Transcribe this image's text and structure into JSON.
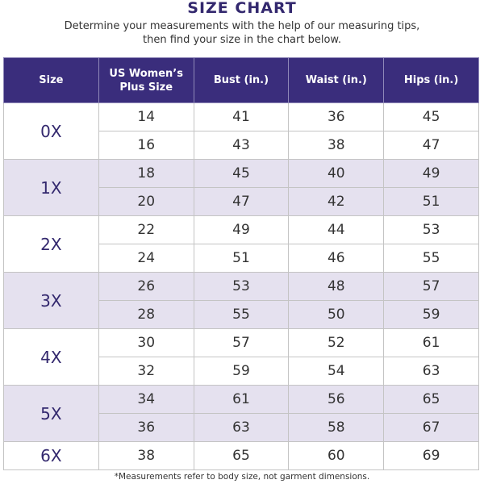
{
  "title": "SIZE CHART",
  "subtitle_lines": [
    "Determine your measurements with the help of our measuring tips,",
    "then find your size in the chart below."
  ],
  "colors": {
    "header": "#3a2d7c",
    "shade": "#e5e1ef",
    "size_text": "#33286e"
  },
  "headers": [
    "Size",
    "US Women’s Plus Size",
    "Bust (in.)",
    "Waist (in.)",
    "Hips (in.)"
  ],
  "groups": [
    {
      "size": "0X",
      "rows": [
        [
          "14",
          "41",
          "36",
          "45"
        ],
        [
          "16",
          "43",
          "38",
          "47"
        ]
      ]
    },
    {
      "size": "1X",
      "rows": [
        [
          "18",
          "45",
          "40",
          "49"
        ],
        [
          "20",
          "47",
          "42",
          "51"
        ]
      ]
    },
    {
      "size": "2X",
      "rows": [
        [
          "22",
          "49",
          "44",
          "53"
        ],
        [
          "24",
          "51",
          "46",
          "55"
        ]
      ]
    },
    {
      "size": "3X",
      "rows": [
        [
          "26",
          "53",
          "48",
          "57"
        ],
        [
          "28",
          "55",
          "50",
          "59"
        ]
      ]
    },
    {
      "size": "4X",
      "rows": [
        [
          "30",
          "57",
          "52",
          "61"
        ],
        [
          "32",
          "59",
          "54",
          "63"
        ]
      ]
    },
    {
      "size": "5X",
      "rows": [
        [
          "34",
          "61",
          "56",
          "65"
        ],
        [
          "36",
          "63",
          "58",
          "67"
        ]
      ]
    },
    {
      "size": "6X",
      "rows": [
        [
          "38",
          "65",
          "60",
          "69"
        ]
      ]
    }
  ],
  "footnote": "*Measurements refer to body size, not garment dimensions."
}
